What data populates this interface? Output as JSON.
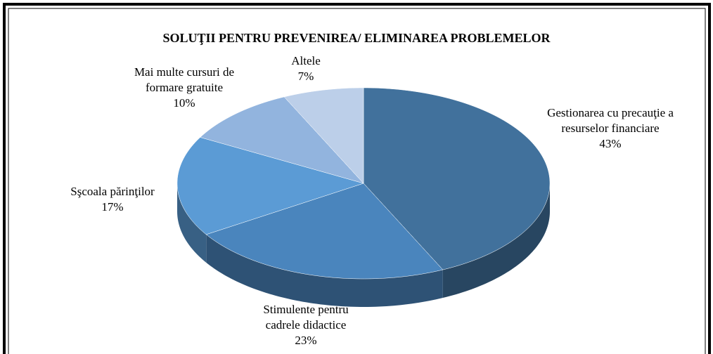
{
  "chart_data": {
    "type": "pie",
    "title": "SOLUŢII PENTRU PREVENIREA/ ELIMINAREA PROBLEMELOR",
    "categories": [
      "Gestionarea cu precauţie a resurselor financiare",
      "Stimulente pentru cadrele didactice",
      "Sşcoala părinţilor",
      "Mai multe cursuri de formare gratuite",
      "Altele"
    ],
    "values": [
      43,
      23,
      17,
      10,
      7
    ],
    "value_labels": [
      "43%",
      "23%",
      "17%",
      "10%",
      "7%"
    ],
    "colors": [
      "#41719c",
      "#4a85bd",
      "#5b9bd5",
      "#92b4de",
      "#bccfe9"
    ]
  }
}
